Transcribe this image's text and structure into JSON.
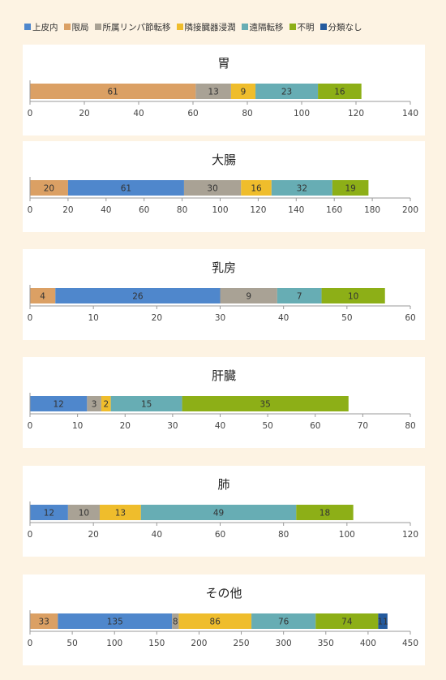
{
  "colors": {
    "epithelial": "#4f87cc",
    "localized": "#dba064",
    "regional_lymph": "#a9a295",
    "adjacent_invasion": "#efbd2c",
    "distant_metastasis": "#67adb4",
    "unknown": "#8daf17",
    "unclassified": "#245a9e"
  },
  "legend": [
    {
      "key": "epithelial",
      "label": "上皮内"
    },
    {
      "key": "localized",
      "label": "限局"
    },
    {
      "key": "regional_lymph",
      "label": "所属リンパ節転移"
    },
    {
      "key": "adjacent_invasion",
      "label": "隣接臓器浸潤"
    },
    {
      "key": "distant_metastasis",
      "label": "遠隔転移"
    },
    {
      "key": "unknown",
      "label": "不明"
    },
    {
      "key": "unclassified",
      "label": "分類なし"
    }
  ],
  "chart_data": [
    {
      "type": "bar",
      "orientation": "horizontal",
      "stacked": true,
      "title": "胃",
      "xlim": [
        0,
        140
      ],
      "ticks": [
        0,
        20,
        40,
        60,
        80,
        100,
        120,
        140
      ],
      "segments": [
        {
          "key": "localized",
          "value": 61
        },
        {
          "key": "regional_lymph",
          "value": 13
        },
        {
          "key": "adjacent_invasion",
          "value": 9
        },
        {
          "key": "distant_metastasis",
          "value": 23
        },
        {
          "key": "unknown",
          "value": 16
        }
      ]
    },
    {
      "type": "bar",
      "orientation": "horizontal",
      "stacked": true,
      "title": "大腸",
      "xlim": [
        0,
        200
      ],
      "ticks": [
        0,
        20,
        40,
        60,
        80,
        100,
        120,
        140,
        160,
        180,
        200
      ],
      "segments": [
        {
          "key": "localized",
          "value": 20
        },
        {
          "key": "epithelial",
          "value": 61
        },
        {
          "key": "regional_lymph",
          "value": 30
        },
        {
          "key": "adjacent_invasion",
          "value": 16
        },
        {
          "key": "distant_metastasis",
          "value": 32
        },
        {
          "key": "unknown",
          "value": 19
        }
      ]
    },
    {
      "type": "bar",
      "orientation": "horizontal",
      "stacked": true,
      "title": "乳房",
      "xlim": [
        0,
        60
      ],
      "ticks": [
        0,
        10,
        20,
        30,
        40,
        50,
        60
      ],
      "segments": [
        {
          "key": "localized",
          "value": 4
        },
        {
          "key": "epithelial",
          "value": 26
        },
        {
          "key": "regional_lymph",
          "value": 9
        },
        {
          "key": "distant_metastasis",
          "value": 7
        },
        {
          "key": "unknown",
          "value": 10
        }
      ]
    },
    {
      "type": "bar",
      "orientation": "horizontal",
      "stacked": true,
      "title": "肝臓",
      "xlim": [
        0,
        80
      ],
      "ticks": [
        0,
        10,
        20,
        30,
        40,
        50,
        60,
        70,
        80
      ],
      "segments": [
        {
          "key": "epithelial",
          "value": 12
        },
        {
          "key": "regional_lymph",
          "value": 3
        },
        {
          "key": "adjacent_invasion",
          "value": 2
        },
        {
          "key": "distant_metastasis",
          "value": 15
        },
        {
          "key": "unknown",
          "value": 35
        }
      ]
    },
    {
      "type": "bar",
      "orientation": "horizontal",
      "stacked": true,
      "title": "肺",
      "xlim": [
        0,
        120
      ],
      "ticks": [
        0,
        20,
        40,
        60,
        80,
        100,
        120
      ],
      "segments": [
        {
          "key": "epithelial",
          "value": 12
        },
        {
          "key": "regional_lymph",
          "value": 10
        },
        {
          "key": "adjacent_invasion",
          "value": 13
        },
        {
          "key": "distant_metastasis",
          "value": 49
        },
        {
          "key": "unknown",
          "value": 18
        }
      ]
    },
    {
      "type": "bar",
      "orientation": "horizontal",
      "stacked": true,
      "title": "その他",
      "xlim": [
        0,
        450
      ],
      "ticks": [
        0,
        50,
        100,
        150,
        200,
        250,
        300,
        350,
        400,
        450
      ],
      "segments": [
        {
          "key": "localized",
          "value": 33
        },
        {
          "key": "epithelial",
          "value": 135
        },
        {
          "key": "regional_lymph",
          "value": 8
        },
        {
          "key": "adjacent_invasion",
          "value": 86
        },
        {
          "key": "distant_metastasis",
          "value": 76
        },
        {
          "key": "unknown",
          "value": 74
        },
        {
          "key": "unclassified",
          "value": 11
        }
      ]
    }
  ]
}
